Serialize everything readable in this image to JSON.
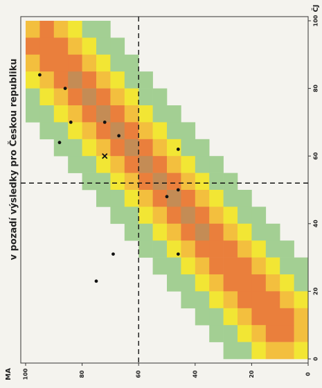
{
  "chart_data": {
    "type": "heatmap",
    "title": "v pozadí výsledky pro Českou republiku",
    "xlabel": "MA",
    "ylabel": "ČJ",
    "xlim": [
      100,
      0
    ],
    "ylim": [
      0,
      100
    ],
    "xticks": [
      100,
      80,
      60,
      40,
      20,
      0
    ],
    "yticks": [
      100,
      80,
      60,
      40,
      20,
      0
    ],
    "colors": [
      "none",
      "#a3cf93",
      "#f2e634",
      "#f3bf3e",
      "#ea7f3c",
      "#c48c55"
    ],
    "z": [
      [
        3,
        4,
        3,
        2,
        1,
        1,
        0,
        0,
        0,
        0,
        0,
        0,
        0,
        0,
        0,
        0,
        0,
        0,
        0,
        0
      ],
      [
        4,
        4,
        4,
        3,
        2,
        1,
        1,
        0,
        0,
        0,
        0,
        0,
        0,
        0,
        0,
        0,
        0,
        0,
        0,
        0
      ],
      [
        3,
        4,
        4,
        4,
        3,
        2,
        1,
        1,
        0,
        0,
        0,
        0,
        0,
        0,
        0,
        0,
        0,
        0,
        0,
        0
      ],
      [
        2,
        3,
        4,
        5,
        4,
        3,
        2,
        1,
        1,
        0,
        0,
        0,
        0,
        0,
        0,
        0,
        0,
        0,
        0,
        0
      ],
      [
        1,
        2,
        3,
        4,
        5,
        4,
        3,
        2,
        1,
        1,
        0,
        0,
        0,
        0,
        0,
        0,
        0,
        0,
        0,
        0
      ],
      [
        1,
        1,
        2,
        3,
        4,
        5,
        4,
        3,
        2,
        1,
        1,
        0,
        0,
        0,
        0,
        0,
        0,
        0,
        0,
        0
      ],
      [
        0,
        1,
        1,
        2,
        3,
        4,
        5,
        4,
        3,
        2,
        1,
        1,
        0,
        0,
        0,
        0,
        0,
        0,
        0,
        0
      ],
      [
        0,
        0,
        1,
        1,
        2,
        3,
        4,
        5,
        4,
        3,
        2,
        1,
        1,
        0,
        0,
        0,
        0,
        0,
        0,
        0
      ],
      [
        0,
        0,
        0,
        1,
        1,
        2,
        3,
        4,
        5,
        4,
        3,
        2,
        1,
        1,
        0,
        0,
        0,
        0,
        0,
        0
      ],
      [
        0,
        0,
        0,
        0,
        1,
        1,
        2,
        3,
        4,
        5,
        4,
        3,
        2,
        1,
        1,
        0,
        0,
        0,
        0,
        0
      ],
      [
        0,
        0,
        0,
        0,
        0,
        1,
        1,
        2,
        3,
        4,
        5,
        4,
        3,
        2,
        1,
        1,
        0,
        0,
        0,
        0
      ],
      [
        0,
        0,
        0,
        0,
        0,
        0,
        1,
        1,
        2,
        3,
        4,
        5,
        4,
        3,
        2,
        1,
        1,
        0,
        0,
        0
      ],
      [
        0,
        0,
        0,
        0,
        0,
        0,
        0,
        1,
        1,
        2,
        3,
        4,
        5,
        4,
        3,
        2,
        1,
        1,
        0,
        0
      ],
      [
        0,
        0,
        0,
        0,
        0,
        0,
        0,
        0,
        1,
        1,
        2,
        3,
        4,
        4,
        4,
        3,
        2,
        1,
        1,
        0
      ],
      [
        0,
        0,
        0,
        0,
        0,
        0,
        0,
        0,
        0,
        1,
        1,
        2,
        3,
        4,
        4,
        4,
        3,
        2,
        1,
        1
      ],
      [
        0,
        0,
        0,
        0,
        0,
        0,
        0,
        0,
        0,
        0,
        1,
        1,
        2,
        3,
        4,
        4,
        4,
        3,
        2,
        1
      ],
      [
        0,
        0,
        0,
        0,
        0,
        0,
        0,
        0,
        0,
        0,
        0,
        1,
        1,
        2,
        3,
        4,
        4,
        4,
        3,
        2
      ],
      [
        0,
        0,
        0,
        0,
        0,
        0,
        0,
        0,
        0,
        0,
        0,
        0,
        1,
        1,
        2,
        3,
        4,
        4,
        4,
        3
      ],
      [
        0,
        0,
        0,
        0,
        0,
        0,
        0,
        0,
        0,
        0,
        0,
        0,
        0,
        1,
        1,
        2,
        3,
        4,
        4,
        3
      ],
      [
        0,
        0,
        0,
        0,
        0,
        0,
        0,
        0,
        0,
        0,
        0,
        0,
        0,
        0,
        1,
        1,
        2,
        3,
        3,
        2
      ]
    ],
    "series": [
      {
        "color": "#111111",
        "x": [
          95,
          86,
          84,
          72,
          88,
          67,
          46,
          46,
          50,
          69,
          46,
          75
        ],
        "y": [
          84,
          80,
          70,
          70,
          64,
          66,
          62,
          50,
          48,
          31,
          31,
          23
        ]
      }
    ],
    "mean": {
      "x": 72,
      "y": 60
    },
    "xref": 60,
    "yref": 52
  }
}
